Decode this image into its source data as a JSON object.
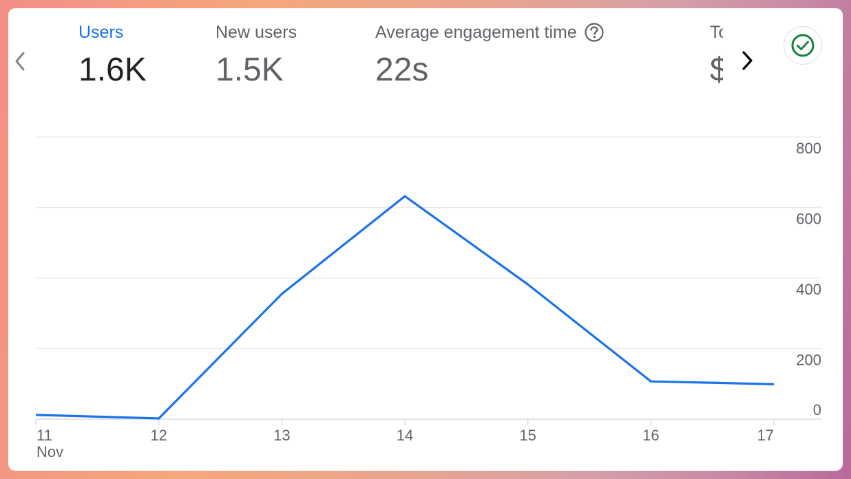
{
  "metrics": [
    {
      "label": "Users",
      "value": "1.6K",
      "active": true
    },
    {
      "label": "New users",
      "value": "1.5K",
      "active": false
    },
    {
      "label": "Average engagement time",
      "value": "22s",
      "active": false,
      "help_icon": "help-circle-icon"
    },
    {
      "label": "To",
      "value": "$",
      "active": false
    }
  ],
  "nav": {
    "prev_icon": "chevron-left-icon",
    "next_icon": "chevron-right-icon"
  },
  "status_icon": "check-circle-icon",
  "colors": {
    "accent": "#1a73e8",
    "line": "#1a73e8",
    "status_green": "#188038"
  },
  "chart_data": {
    "type": "line",
    "x": [
      "11",
      "12",
      "13",
      "14",
      "15",
      "16",
      "17"
    ],
    "x_sublabel": "Nov",
    "series": [
      {
        "values": [
          12,
          2,
          355,
          632,
          382,
          107,
          99
        ]
      }
    ],
    "y_ticks": [
      "800",
      "600",
      "400",
      "200",
      "0"
    ],
    "ylim": [
      0,
      800
    ],
    "grid": true
  }
}
